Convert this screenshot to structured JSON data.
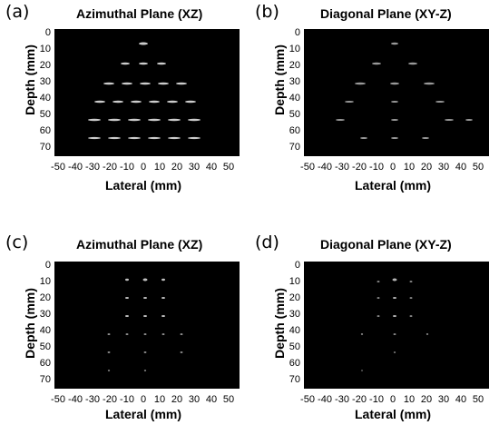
{
  "figure": {
    "x_ticks": [
      "-50",
      "-40",
      "-30",
      "-20",
      "-10",
      "0",
      "10",
      "20",
      "30",
      "40",
      "50"
    ],
    "y_ticks": [
      "0",
      "10",
      "20",
      "30",
      "40",
      "50",
      "60",
      "70"
    ],
    "xlabel": "Lateral (mm)",
    "ylabel_depth": "Depth",
    "ylabel_unit": "(mm)"
  },
  "panels": [
    {
      "letter": "(a)",
      "title": "Azimuthal Plane (XZ)"
    },
    {
      "letter": "(b)",
      "title": "Diagonal Plane (XY-Z)"
    },
    {
      "letter": "(c)",
      "title": "Azimuthal Plane (XZ)"
    },
    {
      "letter": "(d)",
      "title": "Diagonal Plane (XY-Z)"
    }
  ]
}
